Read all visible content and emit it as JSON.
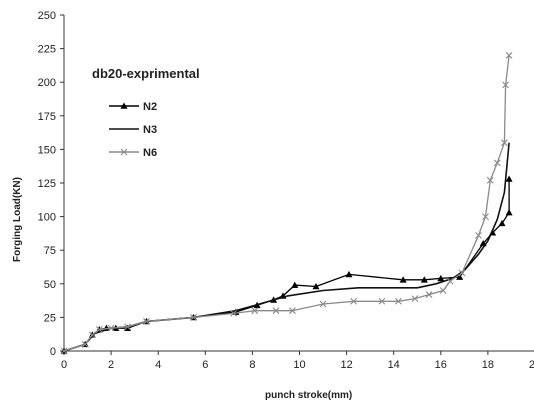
{
  "chart_data": {
    "type": "line",
    "title": "db20-exprimental",
    "xlabel": "punch stroke(mm)",
    "ylabel": "Forging Load(KN)",
    "xlim": [
      0,
      20
    ],
    "ylim": [
      0,
      250
    ],
    "xticks": [
      0,
      2,
      4,
      6,
      8,
      10,
      12,
      14,
      16,
      18,
      20
    ],
    "yticks": [
      0,
      25,
      50,
      75,
      100,
      125,
      150,
      175,
      200,
      225,
      250
    ],
    "grid": false,
    "legend_position": "upper-left",
    "series": [
      {
        "name": "N2",
        "color": "#000000",
        "marker": "triangle",
        "points": [
          [
            0,
            0
          ],
          [
            0.9,
            5
          ],
          [
            1.2,
            12
          ],
          [
            1.5,
            16
          ],
          [
            1.8,
            17
          ],
          [
            2.2,
            17
          ],
          [
            2.7,
            17
          ],
          [
            3.5,
            22
          ],
          [
            5.5,
            25
          ],
          [
            7.3,
            29
          ],
          [
            8.2,
            34
          ],
          [
            8.9,
            38
          ],
          [
            9.3,
            41
          ],
          [
            9.8,
            49
          ],
          [
            10.7,
            48
          ],
          [
            12.1,
            57
          ],
          [
            14.4,
            53
          ],
          [
            15.3,
            53
          ],
          [
            16,
            54
          ],
          [
            16.8,
            55
          ],
          [
            17.8,
            80
          ],
          [
            18.2,
            88
          ],
          [
            18.6,
            95
          ],
          [
            18.9,
            103
          ],
          [
            18.9,
            128
          ]
        ]
      },
      {
        "name": "N3",
        "color": "#111111",
        "marker": "none",
        "points": [
          [
            0,
            0
          ],
          [
            0.9,
            5
          ],
          [
            1.3,
            13
          ],
          [
            2,
            17
          ],
          [
            2.7,
            18
          ],
          [
            3.5,
            22
          ],
          [
            5.5,
            25
          ],
          [
            7.3,
            30
          ],
          [
            8.3,
            35
          ],
          [
            9.5,
            41
          ],
          [
            11,
            45
          ],
          [
            12.5,
            47
          ],
          [
            14,
            47
          ],
          [
            15,
            47
          ],
          [
            15.8,
            50
          ],
          [
            16.5,
            54
          ],
          [
            17,
            60
          ],
          [
            17.6,
            72
          ],
          [
            18,
            82
          ],
          [
            18.4,
            98
          ],
          [
            18.7,
            118
          ],
          [
            18.9,
            155
          ]
        ]
      },
      {
        "name": "N6",
        "color": "#8a8a8a",
        "marker": "x",
        "points": [
          [
            0,
            0
          ],
          [
            0.9,
            5
          ],
          [
            1.2,
            12
          ],
          [
            1.5,
            16
          ],
          [
            2,
            17
          ],
          [
            2.7,
            18
          ],
          [
            3.5,
            22
          ],
          [
            5.5,
            25
          ],
          [
            7.2,
            28
          ],
          [
            8.1,
            30
          ],
          [
            9,
            30
          ],
          [
            9.7,
            30
          ],
          [
            11,
            35
          ],
          [
            12.3,
            37
          ],
          [
            13.5,
            37
          ],
          [
            14.2,
            37
          ],
          [
            14.9,
            39
          ],
          [
            15.5,
            42
          ],
          [
            16.1,
            45
          ],
          [
            16.4,
            52
          ],
          [
            16.9,
            58
          ],
          [
            17.6,
            86
          ],
          [
            17.9,
            100
          ],
          [
            18.1,
            127
          ],
          [
            18.4,
            140
          ],
          [
            18.7,
            155
          ],
          [
            18.75,
            198
          ],
          [
            18.9,
            220
          ]
        ]
      }
    ]
  }
}
